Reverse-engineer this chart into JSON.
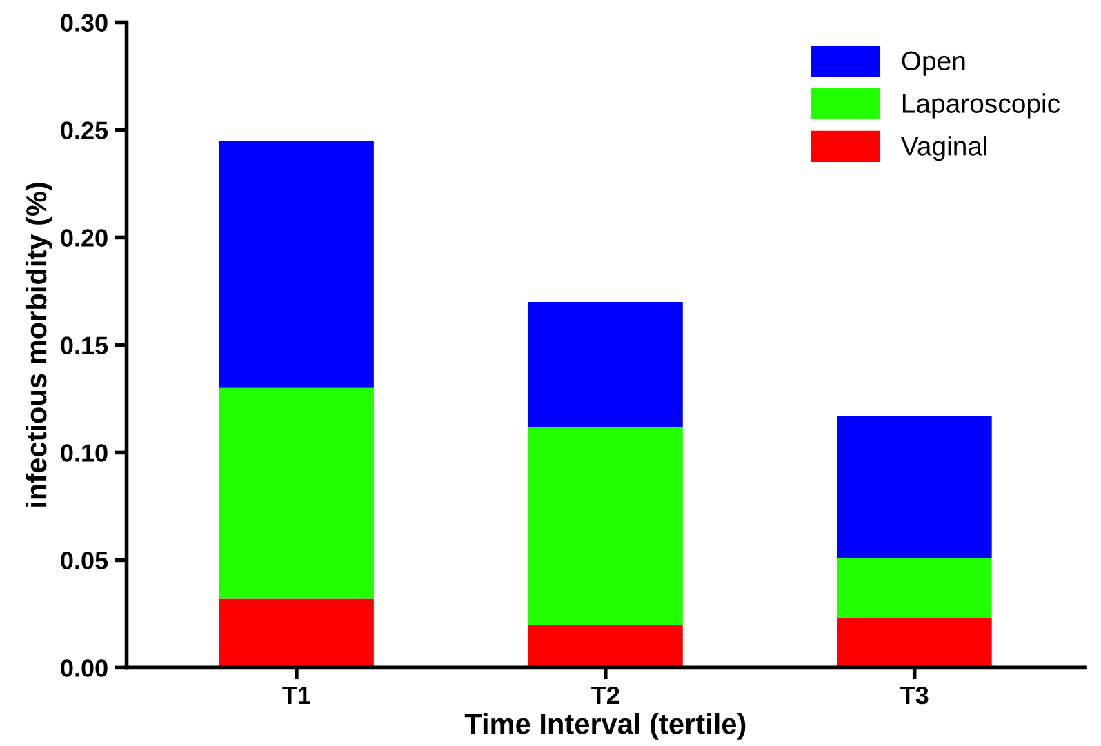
{
  "chart_data": {
    "type": "bar",
    "stacked": true,
    "xlabel": "Time Interval (tertile)",
    "ylabel": "infectious morbidity (%)",
    "categories": [
      "T1",
      "T2",
      "T3"
    ],
    "series": [
      {
        "name": "Vaginal",
        "color": "#ff0000",
        "values": [
          0.032,
          0.02,
          0.023
        ]
      },
      {
        "name": "Laparoscopic",
        "color": "#22ff00",
        "values": [
          0.098,
          0.092,
          0.028
        ]
      },
      {
        "name": "Open",
        "color": "#0000ff",
        "values": [
          0.115,
          0.058,
          0.066
        ]
      }
    ],
    "ylim": [
      0,
      0.3
    ],
    "yticks": [
      {
        "value": 0,
        "label": "0.00"
      },
      {
        "value": 0.05,
        "label": "0.05"
      },
      {
        "value": 0.1,
        "label": "0.10"
      },
      {
        "value": 0.15,
        "label": "0.15"
      },
      {
        "value": 0.2,
        "label": "0.20"
      },
      {
        "value": 0.25,
        "label": "0.25"
      },
      {
        "value": 0.3,
        "label": "0.30"
      }
    ],
    "grid": false,
    "legend": "top right"
  }
}
